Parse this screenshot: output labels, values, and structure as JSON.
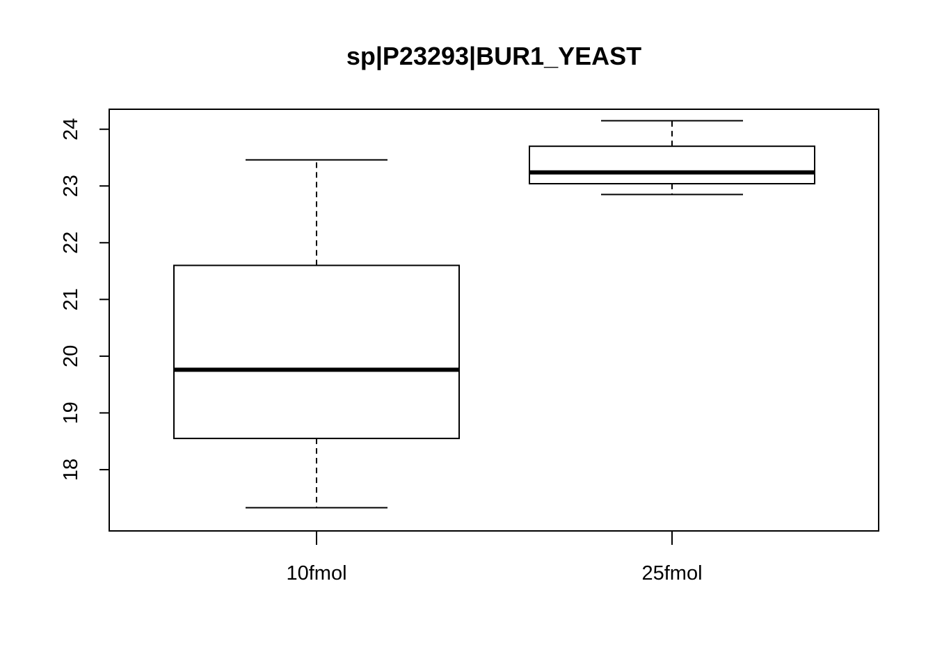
{
  "chart_data": {
    "type": "boxplot",
    "title": "sp|P23293|BUR1_YEAST",
    "xlabel": "",
    "ylabel": "",
    "categories": [
      "10fmol",
      "25fmol"
    ],
    "boxes": [
      {
        "category": "10fmol",
        "whisker_low": 17.33,
        "q1": 18.55,
        "median": 19.76,
        "q3": 21.6,
        "whisker_high": 23.46
      },
      {
        "category": "25fmol",
        "whisker_low": 22.85,
        "q1": 23.04,
        "median": 23.24,
        "q3": 23.7,
        "whisker_high": 24.15
      }
    ],
    "y_ticks": [
      18,
      19,
      20,
      21,
      22,
      23,
      24
    ],
    "ylim": [
      16.92,
      24.34
    ],
    "grid": false,
    "colors": {
      "box_fill": "#ffffff",
      "stroke": "#000000"
    }
  }
}
